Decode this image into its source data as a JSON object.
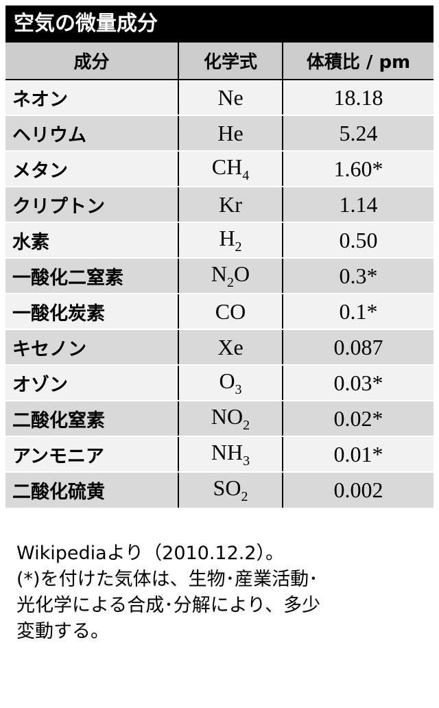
{
  "title": "空気の微量成分",
  "table": {
    "headers": [
      "成分",
      "化学式",
      "体積比 / pm"
    ],
    "rows": [
      {
        "name": "ネオン",
        "formula": [
          {
            "t": "Ne"
          }
        ],
        "value": "18.18"
      },
      {
        "name": "ヘリウム",
        "formula": [
          {
            "t": "He"
          }
        ],
        "value": "5.24"
      },
      {
        "name": "メタン",
        "formula": [
          {
            "t": "CH"
          },
          {
            "t": "4",
            "sub": true
          }
        ],
        "value": "1.60*"
      },
      {
        "name": "クリプトン",
        "formula": [
          {
            "t": "Kr"
          }
        ],
        "value": "1.14"
      },
      {
        "name": "水素",
        "formula": [
          {
            "t": "H"
          },
          {
            "t": "2",
            "sub": true
          }
        ],
        "value": "0.50"
      },
      {
        "name": "一酸化二窒素",
        "formula": [
          {
            "t": "N"
          },
          {
            "t": "2",
            "sub": true
          },
          {
            "t": "O"
          }
        ],
        "value": "0.3*"
      },
      {
        "name": "一酸化炭素",
        "formula": [
          {
            "t": "CO"
          }
        ],
        "value": "0.1*"
      },
      {
        "name": "キセノン",
        "formula": [
          {
            "t": "Xe"
          }
        ],
        "value": "0.087"
      },
      {
        "name": "オゾン",
        "formula": [
          {
            "t": "O"
          },
          {
            "t": "3",
            "sub": true
          }
        ],
        "value": "0.03*"
      },
      {
        "name": "二酸化窒素",
        "formula": [
          {
            "t": "NO"
          },
          {
            "t": "2",
            "sub": true
          }
        ],
        "value": "0.02*"
      },
      {
        "name": "アンモニア",
        "formula": [
          {
            "t": "NH"
          },
          {
            "t": "3",
            "sub": true
          }
        ],
        "value": "0.01*"
      },
      {
        "name": "二酸化硫黄",
        "formula": [
          {
            "t": "SO"
          },
          {
            "t": "2",
            "sub": true
          }
        ],
        "value": "0.002"
      }
    ]
  },
  "notes": {
    "source": "Wikipediaより（2010.12.2）。",
    "footnote_lines": [
      "(*)を付けた気体は、生物･産業活動･",
      "光化学による合成･分解により、多少",
      "変動する。"
    ]
  }
}
